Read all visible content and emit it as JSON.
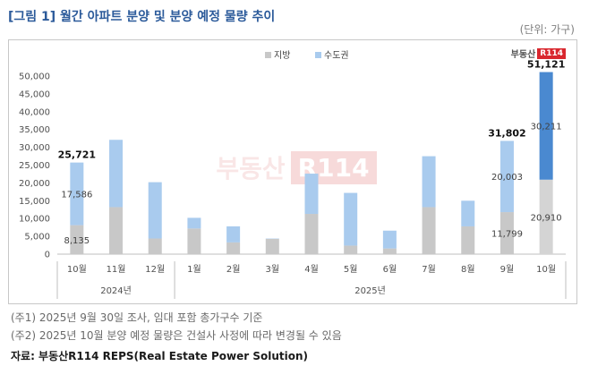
{
  "header": {
    "title": "[그림 1] 월간 아파트 분양 및 분양 예정 물량 추이",
    "unit": "(단위: 가구)"
  },
  "logo": {
    "text": "부동산",
    "badge": "R114"
  },
  "watermark": {
    "text": "부동산",
    "badge": "R114"
  },
  "chart_data": {
    "type": "bar",
    "stacked": true,
    "categories": [
      "10월",
      "11월",
      "12월",
      "1월",
      "2월",
      "3월",
      "4월",
      "5월",
      "6월",
      "7월",
      "8월",
      "9월",
      "10월"
    ],
    "groups": [
      {
        "label": "2024년",
        "start": 0,
        "end": 2
      },
      {
        "label": "2025년",
        "start": 3,
        "end": 12
      }
    ],
    "series": [
      {
        "name": "지방",
        "color": "#c8c8c8",
        "values": [
          8135,
          13200,
          4400,
          7200,
          3300,
          4300,
          11300,
          2400,
          1600,
          13200,
          7800,
          11799,
          20910
        ]
      },
      {
        "name": "수도권",
        "color": "#a9cbee",
        "values": [
          17586,
          18900,
          15800,
          3000,
          4500,
          100,
          11300,
          14800,
          5000,
          14300,
          7200,
          20003,
          30211
        ]
      }
    ],
    "highlight": {
      "index": 12,
      "colors": [
        "#d4d4d4",
        "#4a89d0"
      ]
    },
    "value_labels": [
      {
        "index": 0,
        "series": 0,
        "text": "8,135"
      },
      {
        "index": 0,
        "series": 1,
        "text": "17,586"
      },
      {
        "index": 11,
        "series": 0,
        "text": "11,799"
      },
      {
        "index": 11,
        "series": 1,
        "text": "20,003"
      },
      {
        "index": 12,
        "series": 0,
        "text": "20,910"
      },
      {
        "index": 12,
        "series": 1,
        "text": "30,211"
      }
    ],
    "total_labels": [
      {
        "index": 0,
        "text": "25,721"
      },
      {
        "index": 11,
        "text": "31,802"
      },
      {
        "index": 12,
        "text": "51,121"
      }
    ],
    "ylim": [
      0,
      50000
    ],
    "yticks": [
      "0",
      "5,000",
      "10,000",
      "15,000",
      "20,000",
      "25,000",
      "30,000",
      "35,000",
      "40,000",
      "45,000",
      "50,000"
    ],
    "ytick_values": [
      0,
      5000,
      10000,
      15000,
      20000,
      25000,
      30000,
      35000,
      40000,
      45000,
      50000
    ],
    "legend_position": "top-center",
    "grid": false
  },
  "notes": [
    "(주1) 2025년 9월 30일 조사, 임대 포함 총가구수 기준",
    "(주2) 2025년 10월 분양 예정 물량은 건설사 사정에 따라 변경될 수 있음"
  ],
  "source": "자료: 부동산R114 REPS(Real Estate Power Solution)"
}
